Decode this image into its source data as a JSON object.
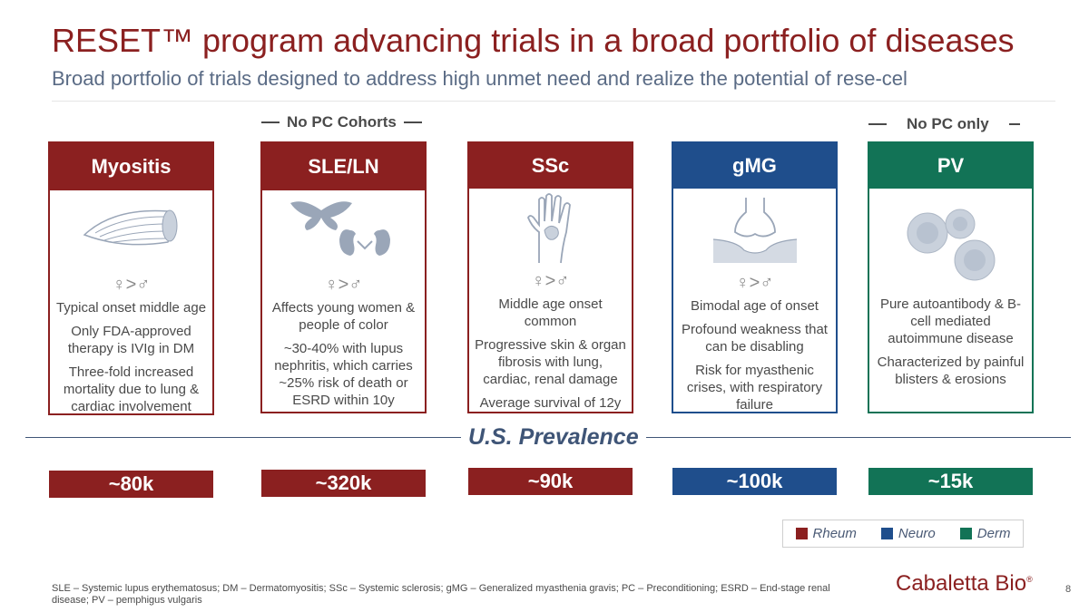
{
  "title": "RESET™ program advancing trials in a broad portfolio of diseases",
  "subtitle": "Broad portfolio of trials designed to address high unmet need and realize the potential of rese-cel",
  "cohort_labels": {
    "sle": "No PC Cohorts",
    "pv": "No PC only"
  },
  "gender_label": "♀>♂",
  "cards": [
    {
      "name": "Myositis",
      "icon": "muscle-icon",
      "color": "#8b2020",
      "lines": [
        "Typical onset middle age",
        "Only FDA-approved therapy is IVIg in DM",
        "Three-fold increased mortality due to lung & cardiac involvement"
      ]
    },
    {
      "name": "SLE/LN",
      "icon": "butterfly-kidney-icon",
      "color": "#8b2020",
      "lines": [
        "Affects young women & people of color",
        "~30-40% with lupus nephritis, which carries ~25% risk of death or ESRD within 10y"
      ]
    },
    {
      "name": "SSc",
      "icon": "hand-icon",
      "color": "#8b2020",
      "lines": [
        "Middle age onset common",
        "Progressive skin & organ fibrosis with lung, cardiac, renal damage",
        "Average survival of 12y"
      ]
    },
    {
      "name": "gMG",
      "icon": "synapse-icon",
      "color": "#1f4e8c",
      "lines": [
        "Bimodal age of onset",
        "Profound weakness that can be disabling",
        "Risk for myasthenic crises, with respiratory failure"
      ]
    },
    {
      "name": "PV",
      "icon": "cells-icon",
      "color": "#127356",
      "lines": [
        "Pure autoantibody & B-cell mediated autoimmune disease",
        "Characterized by painful blisters & erosions"
      ]
    }
  ],
  "prevalence_label": "U.S. Prevalence",
  "prevalence": [
    "~80k",
    "~320k",
    "~90k",
    "~100k",
    "~15k"
  ],
  "legend": [
    {
      "label": "Rheum",
      "color": "#8b2020"
    },
    {
      "label": "Neuro",
      "color": "#1f4e8c"
    },
    {
      "label": "Derm",
      "color": "#127356"
    }
  ],
  "footnote": "SLE – Systemic lupus erythematosus; DM – Dermatomyositis; SSc – Systemic sclerosis; gMG – Generalized myasthenia gravis; PC – Preconditioning; ESRD – End-stage renal disease; PV – pemphigus vulgaris",
  "logo": {
    "text": "Cabaletta Bio",
    "mark": "®"
  },
  "page_number": "8"
}
